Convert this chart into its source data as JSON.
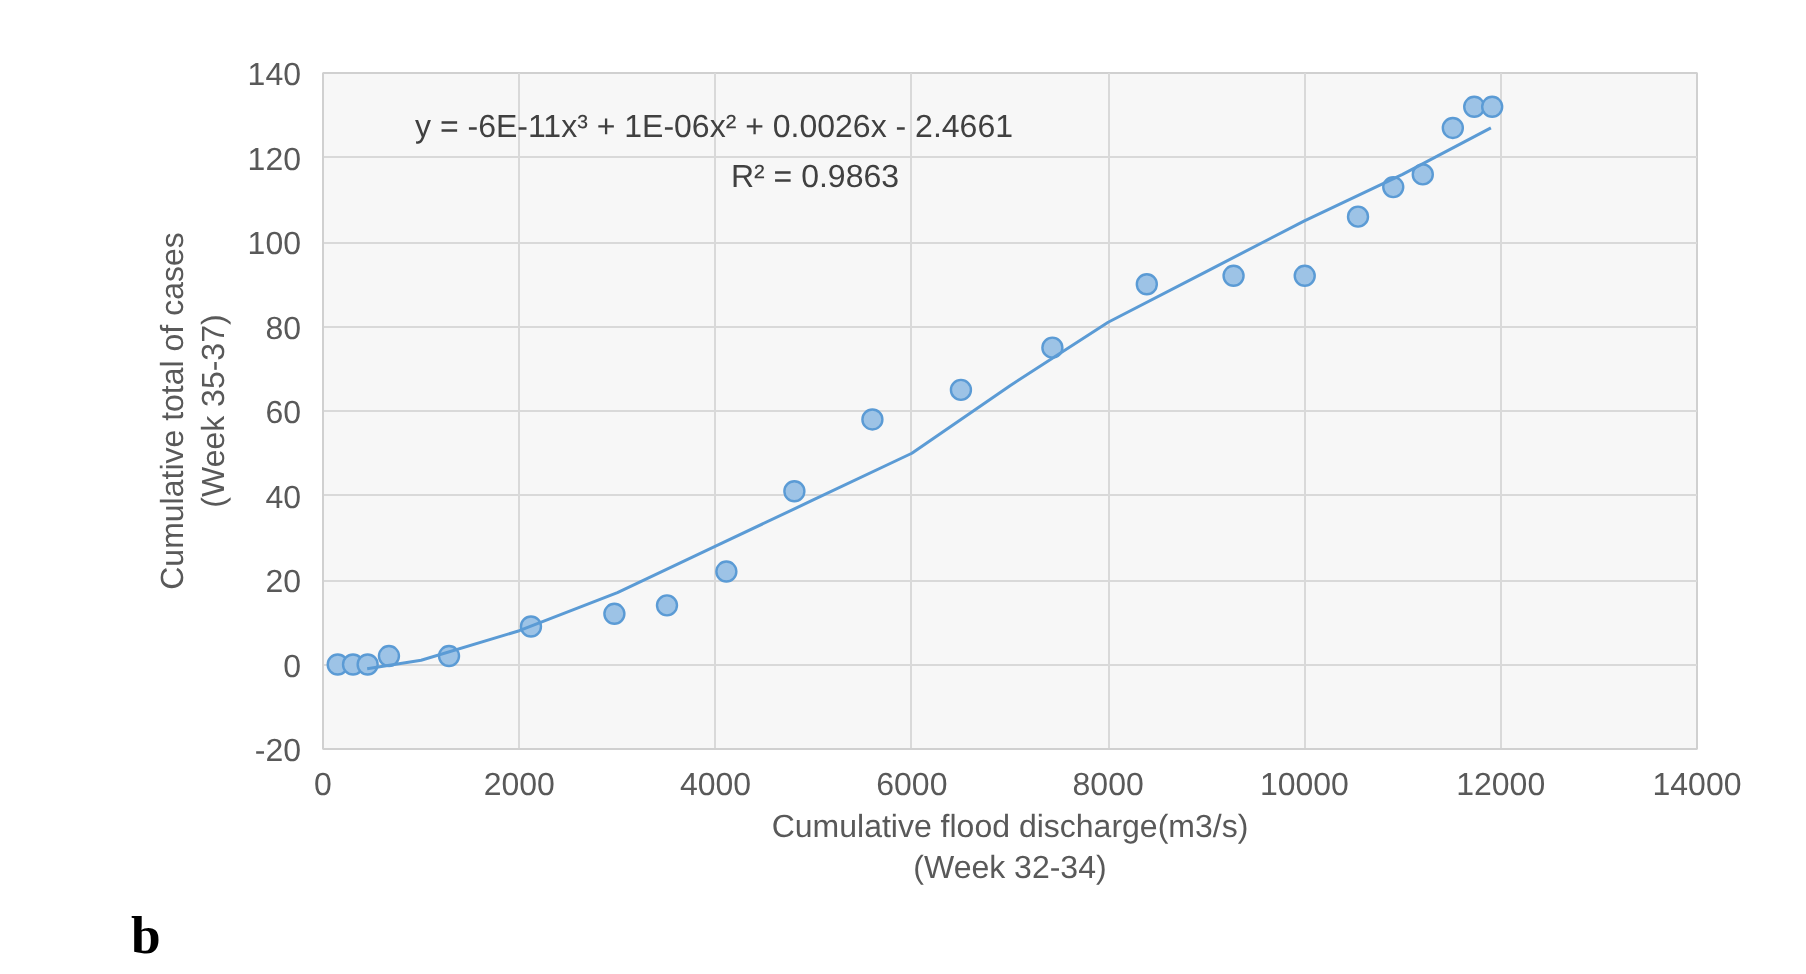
{
  "chart_data": {
    "type": "scatter",
    "xlabel": "Cumulative flood discharge(m3/s)\n(Week 32-34)",
    "ylabel": "Cumulative total of cases\n(Week 35-37)",
    "xlim": [
      0,
      14000
    ],
    "xticks": [
      0,
      2000,
      4000,
      6000,
      8000,
      10000,
      12000,
      14000
    ],
    "ylim": [
      -20,
      140
    ],
    "yticks": [
      -20,
      0,
      20,
      40,
      60,
      80,
      100,
      120,
      140
    ],
    "grid": true,
    "annotations": [
      "y = -6E-11x³ + 1E-06x² + 0.0026x  - 2.4661",
      "R² = 0.9863",
      "b"
    ],
    "series": [
      {
        "marker": "circle",
        "color": "#9dc3e6",
        "x": [
          150,
          306,
          455,
          672,
          1284,
          2119,
          2969,
          3505,
          4110,
          4803,
          5598,
          6500,
          7432,
          8394,
          9278,
          10003,
          10546,
          10905,
          11206,
          11512,
          11730,
          11913
        ],
        "values": [
          0,
          0,
          0,
          2,
          2,
          9,
          12,
          14,
          22,
          41,
          58,
          65,
          75,
          90,
          92,
          92,
          106,
          113,
          116,
          127,
          132,
          132
        ]
      },
      {
        "type": "line",
        "marker": "none",
        "color": "#5b9bd5",
        "x": [
          450,
          1000,
          2000,
          3000,
          4000,
          5000,
          6000,
          7000,
          8000,
          9000,
          10000,
          11000,
          11900
        ],
        "values": [
          -1,
          1,
          8,
          17,
          28,
          39,
          50,
          66,
          81,
          93,
          105,
          116,
          127
        ]
      }
    ]
  }
}
